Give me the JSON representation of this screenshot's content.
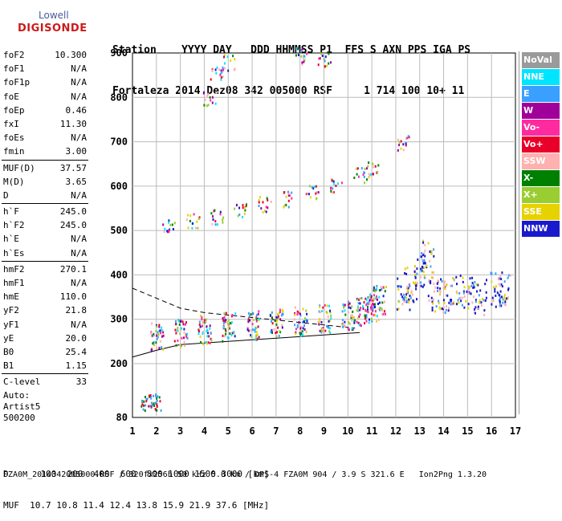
{
  "logo": {
    "brand_top": "Lowell",
    "brand_bottom": "DIGISONDE"
  },
  "header": {
    "line1": "Station    YYYY DAY   DDD HHMMSS P1  FFS S AXN PPS IGA PS",
    "line2": "Fortaleza 2014 Dez08 342 005000 RSF     1 714 100 10+ 11"
  },
  "params": [
    {
      "name": "foF2",
      "value": "10.300"
    },
    {
      "name": "foF1",
      "value": "N/A"
    },
    {
      "name": "foF1p",
      "value": "N/A"
    },
    {
      "name": "foE",
      "value": "N/A"
    },
    {
      "name": "foEp",
      "value": "0.46"
    },
    {
      "name": "fxI",
      "value": "11.30"
    },
    {
      "name": "foEs",
      "value": "N/A"
    },
    {
      "name": "fmin",
      "value": "3.00"
    },
    {
      "name": "MUF(D)",
      "value": "37.57"
    },
    {
      "name": "M(D)",
      "value": "3.65"
    },
    {
      "name": "D",
      "value": "N/A"
    },
    {
      "name": "h`F",
      "value": "245.0"
    },
    {
      "name": "h`F2",
      "value": "245.0"
    },
    {
      "name": "h`E",
      "value": "N/A"
    },
    {
      "name": "h`Es",
      "value": "N/A"
    },
    {
      "name": "hmF2",
      "value": "270.1"
    },
    {
      "name": "hmF1",
      "value": "N/A"
    },
    {
      "name": "hmE",
      "value": "110.0"
    },
    {
      "name": "yF2",
      "value": "21.8"
    },
    {
      "name": "yF1",
      "value": "N/A"
    },
    {
      "name": "yE",
      "value": "20.0"
    },
    {
      "name": "B0",
      "value": "25.4"
    },
    {
      "name": "B1",
      "value": "1.15"
    },
    {
      "name": "C-level",
      "value": "33"
    }
  ],
  "auto": {
    "line1": "Auto:",
    "line2": "Artist5",
    "line3": "500200"
  },
  "footer": {
    "line1": "D      100  200  400  600  800 1000 1500 3000 [km]",
    "line2": "MUF  10.7 10.8 11.4 12.4 13.8 15.9 21.9 37.6 [MHz]",
    "line3": "FZA0M_2014342005000.RSF / 320fx256h 50 kHz 5.0 km / DPS-4 FZA0M 904 / 3.9 S 321.6 E   Ion2Png 1.3.20"
  },
  "legend": [
    {
      "label": "NoVal",
      "color": "#9a9a9a",
      "text": "#ffffff"
    },
    {
      "label": "NNE",
      "color": "#00e5ff",
      "text": "#ffffff"
    },
    {
      "label": "E",
      "color": "#3aa0ff",
      "text": "#ffffff"
    },
    {
      "label": "W",
      "color": "#a0009a",
      "text": "#ffffff"
    },
    {
      "label": "Vo-",
      "color": "#ff2aa0",
      "text": "#ffffff"
    },
    {
      "label": "Vo+",
      "color": "#e8002a",
      "text": "#ffffff"
    },
    {
      "label": "SSW",
      "color": "#ffb0b0",
      "text": "#ffffff"
    },
    {
      "label": "X-",
      "color": "#008000",
      "text": "#ffffff"
    },
    {
      "label": "X+",
      "color": "#9acd32",
      "text": "#ffffff"
    },
    {
      "label": "SSE",
      "color": "#e6d200",
      "text": "#ffffff"
    },
    {
      "label": "NNW",
      "color": "#1a1acc",
      "text": "#ffffff"
    }
  ],
  "chart_data": {
    "type": "scatter",
    "xlabel": "",
    "ylabel": "",
    "xlim": [
      1,
      17
    ],
    "ylim": [
      80,
      900
    ],
    "x_ticks": [
      "1",
      "2",
      "3",
      "4",
      "5",
      "6",
      "7",
      "8",
      "9",
      "10",
      "11",
      "12",
      "13",
      "14",
      "15",
      "16",
      "17"
    ],
    "y_ticks": [
      "80",
      "200",
      "300",
      "400",
      "500",
      "600",
      "700",
      "800",
      "900"
    ],
    "grid": true,
    "series": [
      {
        "name": "O-trace F layer",
        "values": [
          [
            2.0,
            262
          ],
          [
            3.0,
            270
          ],
          [
            4.0,
            278
          ],
          [
            5.0,
            284
          ],
          [
            6.0,
            288
          ],
          [
            7.0,
            293
          ],
          [
            8.0,
            297
          ],
          [
            9.0,
            302
          ],
          [
            10.0,
            310
          ],
          [
            10.6,
            318
          ],
          [
            11.0,
            330
          ],
          [
            11.3,
            345
          ]
        ]
      },
      {
        "name": "Multiple hop",
        "values": [
          [
            2.5,
            510
          ],
          [
            3.5,
            522
          ],
          [
            4.5,
            532
          ],
          [
            5.5,
            545
          ],
          [
            6.5,
            560
          ],
          [
            7.5,
            572
          ],
          [
            8.5,
            585
          ],
          [
            9.5,
            605
          ],
          [
            10.5,
            625
          ],
          [
            11.0,
            640
          ]
        ]
      },
      {
        "name": "Upper echoes",
        "values": [
          [
            4.5,
            860
          ],
          [
            5.0,
            880
          ],
          [
            8.0,
            895
          ],
          [
            9.0,
            890
          ],
          [
            4.2,
            800
          ],
          [
            12.3,
            700
          ]
        ]
      },
      {
        "name": "Spread F",
        "values": [
          [
            12.3,
            360
          ],
          [
            12.6,
            380
          ],
          [
            13.0,
            410
          ],
          [
            13.3,
            440
          ],
          [
            13.6,
            360
          ],
          [
            14.0,
            355
          ],
          [
            14.5,
            365
          ],
          [
            15.0,
            360
          ],
          [
            15.5,
            352
          ],
          [
            16.2,
            368
          ],
          [
            16.5,
            370
          ]
        ]
      },
      {
        "name": "Low echoes",
        "values": [
          [
            1.6,
            115
          ],
          [
            1.8,
            116
          ],
          [
            1.9,
            114
          ]
        ]
      }
    ],
    "profile_lines": [
      {
        "name": "profile-upper",
        "values": [
          [
            1.0,
            370
          ],
          [
            3.0,
            325
          ],
          [
            4.0,
            315
          ],
          [
            10.3,
            280
          ]
        ]
      },
      {
        "name": "profile-lower",
        "values": [
          [
            1.0,
            215
          ],
          [
            2.0,
            230
          ],
          [
            3.0,
            243
          ],
          [
            10.5,
            270
          ]
        ]
      }
    ]
  }
}
